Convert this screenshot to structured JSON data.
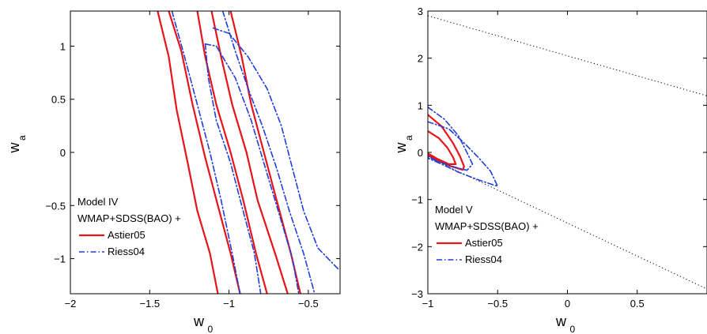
{
  "chart_data": [
    {
      "type": "contour",
      "xlabel": "w",
      "xlabel_sub": "0",
      "ylabel": "w",
      "ylabel_sub": "a",
      "xlim": [
        -2,
        -0.3
      ],
      "ylim": [
        -1.33,
        1.33
      ],
      "xticks": [
        -2,
        -1.5,
        -1,
        -0.5
      ],
      "xtick_labels": [
        "−2",
        "−1.5",
        "−1",
        "−0.5"
      ],
      "yticks": [
        -1,
        -0.5,
        0,
        0.5,
        1
      ],
      "ytick_labels": [
        "−1",
        "−0.5",
        "0",
        "0.5",
        "1"
      ],
      "legend_title_lines": [
        "Model IV",
        "WMAP+SDSS(BAO) +"
      ],
      "legend_position": "bottom-left",
      "colors": {
        "Astier05": "#e8141c",
        "Riess04": "#1f3fd8"
      },
      "series": [
        {
          "name": "Astier05",
          "style": "solid",
          "contours": [
            [
              [
                -1.45,
                1.33
              ],
              [
                -1.38,
                0.9
              ],
              [
                -1.33,
                0.4
              ],
              [
                -1.26,
                -0.1
              ],
              [
                -1.2,
                -0.55
              ],
              [
                -1.12,
                -0.95
              ],
              [
                -1.07,
                -1.33
              ]
            ],
            [
              [
                -1.38,
                1.33
              ],
              [
                -1.3,
                0.95
              ],
              [
                -1.23,
                0.45
              ],
              [
                -1.15,
                -0.05
              ],
              [
                -1.07,
                -0.5
              ],
              [
                -0.99,
                -0.95
              ],
              [
                -0.93,
                -1.33
              ]
            ],
            [
              [
                -1.2,
                1.33
              ],
              [
                -1.15,
                0.9
              ],
              [
                -1.08,
                0.45
              ],
              [
                -0.99,
                0
              ],
              [
                -0.91,
                -0.45
              ],
              [
                -0.83,
                -0.95
              ],
              [
                -0.76,
                -1.33
              ]
            ],
            [
              [
                -1.11,
                1.33
              ],
              [
                -1.05,
                0.9
              ],
              [
                -0.98,
                0.45
              ],
              [
                -0.89,
                0
              ],
              [
                -0.82,
                -0.45
              ],
              [
                -0.71,
                -0.95
              ],
              [
                -0.63,
                -1.33
              ]
            ],
            [
              [
                -0.99,
                1.33
              ],
              [
                -0.92,
                0.9
              ],
              [
                -0.86,
                0.45
              ],
              [
                -0.78,
                0
              ],
              [
                -0.7,
                -0.45
              ],
              [
                -0.61,
                -0.95
              ],
              [
                -0.55,
                -1.33
              ]
            ]
          ]
        },
        {
          "name": "Riess04",
          "style": "dashdot",
          "contours": [
            [
              [
                -1.36,
                1.33
              ],
              [
                -1.28,
                0.9
              ],
              [
                -1.2,
                0.45
              ],
              [
                -1.12,
                0
              ],
              [
                -1.05,
                -0.45
              ],
              [
                -0.98,
                -0.95
              ],
              [
                -0.93,
                -1.33
              ]
            ],
            [
              [
                -1.15,
                1.02
              ],
              [
                -1.13,
                0.7
              ],
              [
                -1.08,
                0.3
              ],
              [
                -0.99,
                -0.1
              ],
              [
                -0.92,
                -0.5
              ],
              [
                -0.84,
                -0.95
              ],
              [
                -0.8,
                -1.33
              ]
            ],
            [
              [
                -1.15,
                1.02
              ],
              [
                -1.08,
                1.0
              ],
              [
                -0.96,
                0.7
              ],
              [
                -0.86,
                0.3
              ],
              [
                -0.78,
                -0.1
              ],
              [
                -0.69,
                -0.55
              ],
              [
                -0.6,
                -1.0
              ],
              [
                -0.56,
                -1.33
              ]
            ],
            [
              [
                -1.04,
                1.33
              ],
              [
                -0.96,
                0.95
              ],
              [
                -0.88,
                0.6
              ],
              [
                -0.79,
                0.25
              ],
              [
                -0.7,
                -0.15
              ],
              [
                -0.62,
                -0.55
              ],
              [
                -0.53,
                -0.95
              ],
              [
                -0.46,
                -1.33
              ]
            ],
            [
              [
                -1.1,
                1.17
              ],
              [
                -1.0,
                1.12
              ],
              [
                -0.88,
                0.9
              ],
              [
                -0.76,
                0.6
              ],
              [
                -0.67,
                0.25
              ],
              [
                -0.6,
                -0.15
              ],
              [
                -0.53,
                -0.55
              ],
              [
                -0.44,
                -0.9
              ],
              [
                -0.31,
                -1.1
              ]
            ]
          ]
        }
      ]
    },
    {
      "type": "contour",
      "xlabel": "w",
      "xlabel_sub": "0",
      "ylabel": "w",
      "ylabel_sub": "a",
      "xlim": [
        -1,
        1
      ],
      "ylim": [
        -3,
        3
      ],
      "xticks": [
        -1,
        -0.5,
        0,
        0.5
      ],
      "xtick_labels": [
        "−1",
        "−0.5",
        "0",
        "0.5"
      ],
      "yticks": [
        -3,
        -2,
        -1,
        0,
        1,
        2,
        3
      ],
      "ytick_labels": [
        "−3",
        "−2",
        "−1",
        "0",
        "1",
        "2",
        "3"
      ],
      "legend_title_lines": [
        "Model V",
        "WMAP+SDSS(BAO) +"
      ],
      "legend_position": "bottom-left",
      "boundary_lines": [
        [
          [
            -1,
            2.9
          ],
          [
            1,
            1.2
          ]
        ],
        [
          [
            -1,
            -0.1
          ],
          [
            1,
            -2.9
          ]
        ]
      ],
      "series": [
        {
          "name": "Astier05",
          "style": "solid",
          "contours": [
            [
              [
                -1.0,
                0.8
              ],
              [
                -0.9,
                0.55
              ],
              [
                -0.82,
                0.2
              ],
              [
                -0.77,
                -0.08
              ],
              [
                -0.74,
                -0.3
              ],
              [
                -0.75,
                -0.37
              ],
              [
                -0.85,
                -0.28
              ],
              [
                -0.93,
                -0.17
              ],
              [
                -1.0,
                -0.06
              ]
            ],
            [
              [
                -1.0,
                0.45
              ],
              [
                -0.92,
                0.3
              ],
              [
                -0.86,
                0.1
              ],
              [
                -0.82,
                -0.1
              ],
              [
                -0.8,
                -0.25
              ],
              [
                -0.85,
                -0.25
              ],
              [
                -0.93,
                -0.14
              ],
              [
                -1.0,
                -0.02
              ]
            ]
          ]
        },
        {
          "name": "Riess04",
          "style": "dashdot",
          "contours": [
            [
              [
                -1.0,
                0.96
              ],
              [
                -0.88,
                0.7
              ],
              [
                -0.78,
                0.35
              ],
              [
                -0.72,
                0.0
              ],
              [
                -0.68,
                -0.25
              ],
              [
                -0.72,
                -0.38
              ],
              [
                -0.85,
                -0.28
              ],
              [
                -0.95,
                -0.16
              ],
              [
                -1.0,
                -0.08
              ]
            ],
            [
              [
                -1.0,
                0.65
              ],
              [
                -0.85,
                0.5
              ],
              [
                -0.74,
                0.2
              ],
              [
                -0.64,
                -0.1
              ],
              [
                -0.55,
                -0.4
              ],
              [
                -0.5,
                -0.72
              ],
              [
                -0.64,
                -0.58
              ],
              [
                -0.78,
                -0.42
              ],
              [
                -0.9,
                -0.25
              ],
              [
                -1.0,
                -0.12
              ]
            ]
          ]
        }
      ]
    }
  ]
}
